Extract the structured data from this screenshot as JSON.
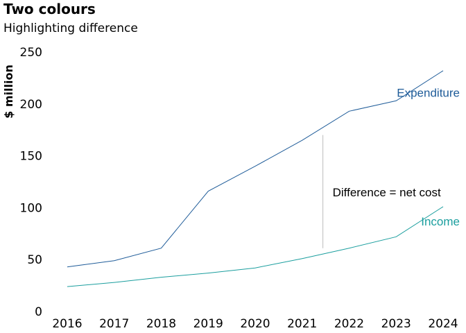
{
  "chart_data": {
    "type": "line",
    "title": "Two colours",
    "subtitle": "Highlighting difference",
    "xlabel": "",
    "ylabel": "$ million",
    "x": [
      2016,
      2017,
      2018,
      2019,
      2020,
      2021,
      2022,
      2023,
      2024
    ],
    "x_tick_labels": [
      "2016",
      "2017",
      "2018",
      "2019",
      "2020",
      "2021",
      "2022",
      "2023",
      "2024"
    ],
    "ylim": [
      0,
      250
    ],
    "y_ticks": [
      0,
      50,
      100,
      150,
      200,
      250
    ],
    "y_tick_labels": [
      "0",
      "50",
      "100",
      "150",
      "200",
      "250"
    ],
    "grid": false,
    "series": [
      {
        "name": "Expenditure",
        "color": "#1f5c99",
        "values": [
          43,
          49,
          61,
          116,
          140,
          165,
          193,
          203,
          232
        ]
      },
      {
        "name": "Income",
        "color": "#1a9e9e",
        "values": [
          24,
          28,
          33,
          37,
          42,
          51,
          61,
          72,
          101
        ]
      }
    ],
    "annotation": {
      "text": "Difference = net cost",
      "x": 2021.5,
      "y_from": 61,
      "y_to": 170,
      "line_color": "#bbbbbb"
    }
  }
}
